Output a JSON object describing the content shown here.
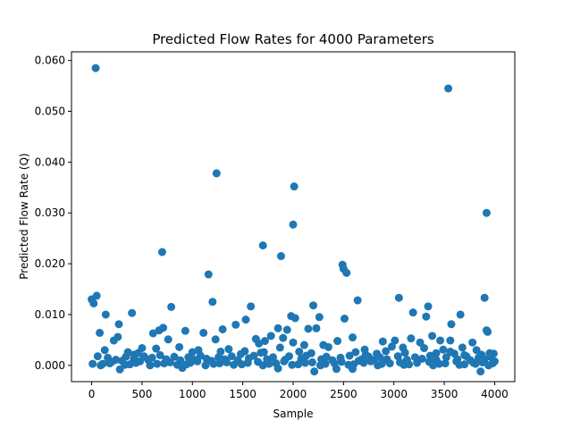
{
  "colors": {
    "marker": "#1f77b4"
  },
  "chart_data": {
    "type": "scatter",
    "title": "Predicted Flow Rates for 4000 Parameters",
    "xlabel": "Sample",
    "ylabel": "Predicted Flow Rate (Q)",
    "xlim": [
      -200,
      4200
    ],
    "ylim": [
      -0.0032,
      0.0617
    ],
    "xticks": [
      0,
      500,
      1000,
      1500,
      2000,
      2500,
      3000,
      3500,
      4000
    ],
    "xtick_labels": [
      "0",
      "500",
      "1000",
      "1500",
      "2000",
      "2500",
      "3000",
      "3500",
      "4000"
    ],
    "yticks": [
      0.0,
      0.01,
      0.02,
      0.03,
      0.04,
      0.05,
      0.06
    ],
    "ytick_labels": [
      "0.000",
      "0.010",
      "0.020",
      "0.030",
      "0.040",
      "0.050",
      "0.060"
    ],
    "grid": false,
    "legend": "none",
    "series": [
      {
        "points": [
          [
            40,
            0.0585
          ],
          [
            3540,
            0.0545
          ],
          [
            1240,
            0.0378
          ],
          [
            2010,
            0.0352
          ],
          [
            3920,
            0.03
          ],
          [
            2000,
            0.0277
          ],
          [
            2490,
            0.0198
          ],
          [
            2500,
            0.019
          ],
          [
            2530,
            0.0182
          ],
          [
            700,
            0.0223
          ],
          [
            1700,
            0.0236
          ],
          [
            1880,
            0.0215
          ],
          [
            1160,
            0.0179
          ],
          [
            0,
            0.013
          ],
          [
            20,
            0.0122
          ],
          [
            50,
            0.0137
          ],
          [
            1200,
            0.0125
          ],
          [
            3050,
            0.0133
          ],
          [
            3900,
            0.0133
          ],
          [
            2640,
            0.0128
          ],
          [
            790,
            0.0115
          ],
          [
            1580,
            0.0116
          ],
          [
            2200,
            0.0118
          ],
          [
            3340,
            0.0116
          ],
          [
            140,
            0.01
          ],
          [
            400,
            0.0103
          ],
          [
            3190,
            0.0104
          ],
          [
            3660,
            0.01
          ],
          [
            1980,
            0.0097
          ],
          [
            2020,
            0.0093
          ],
          [
            2260,
            0.0095
          ],
          [
            2510,
            0.0092
          ],
          [
            3320,
            0.0096
          ],
          [
            1530,
            0.009
          ],
          [
            1430,
            0.008
          ],
          [
            3570,
            0.0081
          ],
          [
            270,
            0.0081
          ],
          [
            670,
            0.0069
          ],
          [
            710,
            0.0074
          ],
          [
            3920,
            0.0069
          ],
          [
            3930,
            0.0066
          ],
          [
            1850,
            0.0073
          ],
          [
            2150,
            0.0072
          ],
          [
            2230,
            0.0073
          ],
          [
            1300,
            0.0071
          ],
          [
            930,
            0.0068
          ],
          [
            610,
            0.0063
          ],
          [
            80,
            0.0064
          ],
          [
            1110,
            0.0064
          ],
          [
            1940,
            0.007
          ],
          [
            260,
            0.0056
          ],
          [
            1630,
            0.0052
          ],
          [
            1720,
            0.0048
          ],
          [
            1780,
            0.0058
          ],
          [
            2440,
            0.0048
          ],
          [
            2590,
            0.0055
          ],
          [
            3010,
            0.0049
          ],
          [
            3460,
            0.0049
          ],
          [
            3560,
            0.0049
          ],
          [
            2890,
            0.0047
          ],
          [
            3170,
            0.0053
          ],
          [
            3260,
            0.0045
          ],
          [
            760,
            0.0051
          ],
          [
            220,
            0.0049
          ],
          [
            1230,
            0.0051
          ],
          [
            1660,
            0.0043
          ],
          [
            2000,
            0.0045
          ],
          [
            2110,
            0.004
          ],
          [
            2300,
            0.004
          ],
          [
            3780,
            0.0045
          ],
          [
            3380,
            0.0058
          ],
          [
            1900,
            0.0054
          ],
          [
            500,
            0.0034
          ],
          [
            640,
            0.0033
          ],
          [
            870,
            0.0036
          ],
          [
            1060,
            0.003
          ],
          [
            1360,
            0.0032
          ],
          [
            1520,
            0.0028
          ],
          [
            1870,
            0.0035
          ],
          [
            2060,
            0.0027
          ],
          [
            2350,
            0.0036
          ],
          [
            2710,
            0.0031
          ],
          [
            2980,
            0.0037
          ],
          [
            3090,
            0.0035
          ],
          [
            3300,
            0.0034
          ],
          [
            3490,
            0.0031
          ],
          [
            3680,
            0.0035
          ],
          [
            3820,
            0.003
          ],
          [
            3950,
            0.0024
          ],
          [
            3990,
            0.0023
          ],
          [
            130,
            0.003
          ],
          [
            360,
            0.0026
          ],
          [
            460,
            0.0024
          ],
          [
            1000,
            0.0026
          ],
          [
            1480,
            0.0022
          ],
          [
            1680,
            0.0025
          ],
          [
            2180,
            0.0024
          ],
          [
            2620,
            0.0026
          ],
          [
            2830,
            0.0023
          ],
          [
            3600,
            0.0023
          ],
          [
            3870,
            0.0021
          ],
          [
            2210,
            -0.0012
          ],
          [
            3860,
            -0.0012
          ],
          [
            280,
            -0.0008
          ],
          [
            1850,
            -0.0006
          ],
          [
            2590,
            -0.0007
          ],
          [
            900,
            -0.0005
          ],
          [
            2430,
            -0.0007
          ],
          [
            60,
            0.0018
          ],
          [
            160,
            0.0015
          ],
          [
            240,
            0.0011
          ],
          [
            300,
            0.0009
          ],
          [
            340,
            0.0017
          ],
          [
            420,
            0.0013
          ],
          [
            520,
            0.0018
          ],
          [
            560,
            0.0011
          ],
          [
            600,
            0.0015
          ],
          [
            680,
            0.002
          ],
          [
            740,
            0.0012
          ],
          [
            820,
            0.0017
          ],
          [
            880,
            0.001
          ],
          [
            960,
            0.0016
          ],
          [
            1020,
            0.0011
          ],
          [
            1080,
            0.0019
          ],
          [
            1140,
            0.0013
          ],
          [
            1190,
            0.0009
          ],
          [
            1260,
            0.0016
          ],
          [
            1320,
            0.0012
          ],
          [
            1390,
            0.0018
          ],
          [
            1450,
            0.001
          ],
          [
            1560,
            0.0014
          ],
          [
            1610,
            0.0019
          ],
          [
            1740,
            0.0012
          ],
          [
            1800,
            0.0016
          ],
          [
            1920,
            0.0011
          ],
          [
            1960,
            0.0018
          ],
          [
            2080,
            0.0013
          ],
          [
            2130,
            0.0019
          ],
          [
            2280,
            0.0012
          ],
          [
            2330,
            0.0017
          ],
          [
            2390,
            0.001
          ],
          [
            2470,
            0.0015
          ],
          [
            2560,
            0.0019
          ],
          [
            2680,
            0.0012
          ],
          [
            2750,
            0.0017
          ],
          [
            2800,
            0.001
          ],
          [
            2860,
            0.0016
          ],
          [
            2930,
            0.0012
          ],
          [
            3040,
            0.0018
          ],
          [
            3130,
            0.0011
          ],
          [
            3210,
            0.0016
          ],
          [
            3280,
            0.0013
          ],
          [
            3360,
            0.0019
          ],
          [
            3420,
            0.0011
          ],
          [
            3520,
            0.0016
          ],
          [
            3630,
            0.0012
          ],
          [
            3720,
            0.0018
          ],
          [
            3760,
            0.001
          ],
          [
            3840,
            0.0015
          ],
          [
            3900,
            0.0012
          ],
          [
            3960,
            0.0017
          ],
          [
            4000,
            0.0008
          ],
          [
            10,
            0.0003
          ],
          [
            90,
            0.0
          ],
          [
            180,
            0.0004
          ],
          [
            330,
            0.0001
          ],
          [
            440,
            0.0005
          ],
          [
            580,
            0.0
          ],
          [
            720,
            0.0004
          ],
          [
            850,
            0.0001
          ],
          [
            980,
            0.0005
          ],
          [
            1130,
            0.0
          ],
          [
            1270,
            0.0004
          ],
          [
            1410,
            0.0001
          ],
          [
            1550,
            0.0005
          ],
          [
            1700,
            0.0
          ],
          [
            1830,
            0.0004
          ],
          [
            1990,
            0.0001
          ],
          [
            2120,
            0.0005
          ],
          [
            2270,
            0.0
          ],
          [
            2410,
            0.0004
          ],
          [
            2550,
            0.0001
          ],
          [
            2700,
            0.0005
          ],
          [
            2840,
            0.0
          ],
          [
            2960,
            0.0004
          ],
          [
            3100,
            0.0001
          ],
          [
            3230,
            0.0005
          ],
          [
            3390,
            0.0
          ],
          [
            3510,
            0.0004
          ],
          [
            3650,
            0.0001
          ],
          [
            3790,
            0.0005
          ],
          [
            3940,
            0.0
          ],
          [
            3980,
            0.0004
          ],
          [
            200,
            0.0007
          ],
          [
            480,
            0.0008
          ],
          [
            780,
            0.0006
          ],
          [
            1050,
            0.0008
          ],
          [
            1340,
            0.0006
          ],
          [
            1650,
            0.0007
          ],
          [
            1910,
            0.0008
          ],
          [
            2190,
            0.0006
          ],
          [
            2480,
            0.0007
          ],
          [
            2770,
            0.0008
          ],
          [
            3060,
            0.0006
          ],
          [
            3350,
            0.0007
          ],
          [
            3620,
            0.0008
          ],
          [
            3880,
            0.0006
          ],
          [
            3450,
            0.0003
          ],
          [
            3150,
            0.0002
          ],
          [
            2880,
            0.0003
          ],
          [
            2600,
            0.0002
          ],
          [
            2320,
            0.0003
          ],
          [
            2050,
            0.0002
          ],
          [
            1760,
            0.0003
          ],
          [
            1490,
            0.0002
          ],
          [
            1210,
            0.0003
          ],
          [
            940,
            0.0002
          ],
          [
            650,
            0.0003
          ],
          [
            380,
            0.0002
          ],
          [
            110,
            0.0003
          ],
          [
            3700,
            0.0002
          ],
          [
            3810,
            0.0003
          ],
          [
            2650,
            0.0009
          ],
          [
            2720,
            0.0021
          ],
          [
            3420,
            0.0024
          ],
          [
            1710,
            0.0026
          ],
          [
            1280,
            0.0027
          ],
          [
            420,
            0.0021
          ],
          [
            3560,
            0.0027
          ],
          [
            3700,
            0.002
          ],
          [
            2920,
            0.0028
          ],
          [
            3110,
            0.0025
          ]
        ]
      }
    ]
  }
}
